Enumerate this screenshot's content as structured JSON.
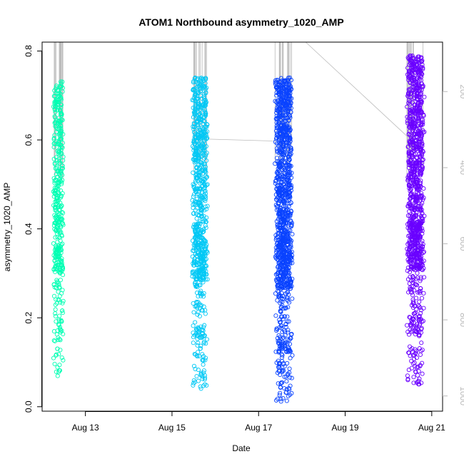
{
  "chart_data": {
    "type": "scatter",
    "title": "ATOM1 Northbound asymmetry_1020_AMP",
    "xlabel": "Date",
    "ylabel": "asymmetry_1020_AMP",
    "x_ticks": [
      "Aug 13",
      "Aug 15",
      "Aug 17",
      "Aug 19",
      "Aug 21"
    ],
    "y_ticks": [
      "0.0",
      "0.2",
      "0.4",
      "0.6",
      "0.8"
    ],
    "y_right_ticks": [
      "200",
      "400",
      "600",
      "800",
      "1000"
    ],
    "xlim": [
      "2024-08-12 00:00",
      "2024-08-21 06:00"
    ],
    "ylim": [
      -0.01,
      0.82
    ],
    "y_right_lim": [
      1040,
      70
    ],
    "y_right_range": [
      70,
      1040
    ],
    "grid": false,
    "legend": "none",
    "series": [
      {
        "color": "#00FFB3",
        "x_start": "2024-08-12 06:00",
        "x_end": "2024-08-12 12:00",
        "y_range": [
          0.065,
          0.735
        ],
        "count": 450
      },
      {
        "color": "#00C8F5",
        "x_start": "2024-08-15 11:00",
        "x_end": "2024-08-15 20:00",
        "y_range": [
          0.04,
          0.74
        ],
        "count": 800
      },
      {
        "color": "#0A43FF",
        "x_start": "2024-08-17 09:00",
        "x_end": "2024-08-17 19:00",
        "y_range": [
          0.01,
          0.74
        ],
        "count": 1200
      },
      {
        "color": "#6A00FF",
        "x_start": "2024-08-20 10:00",
        "x_end": "2024-08-20 20:00",
        "y_range": [
          0.05,
          0.79
        ],
        "count": 1100
      }
    ],
    "trace_color": "#bbbbbb"
  }
}
